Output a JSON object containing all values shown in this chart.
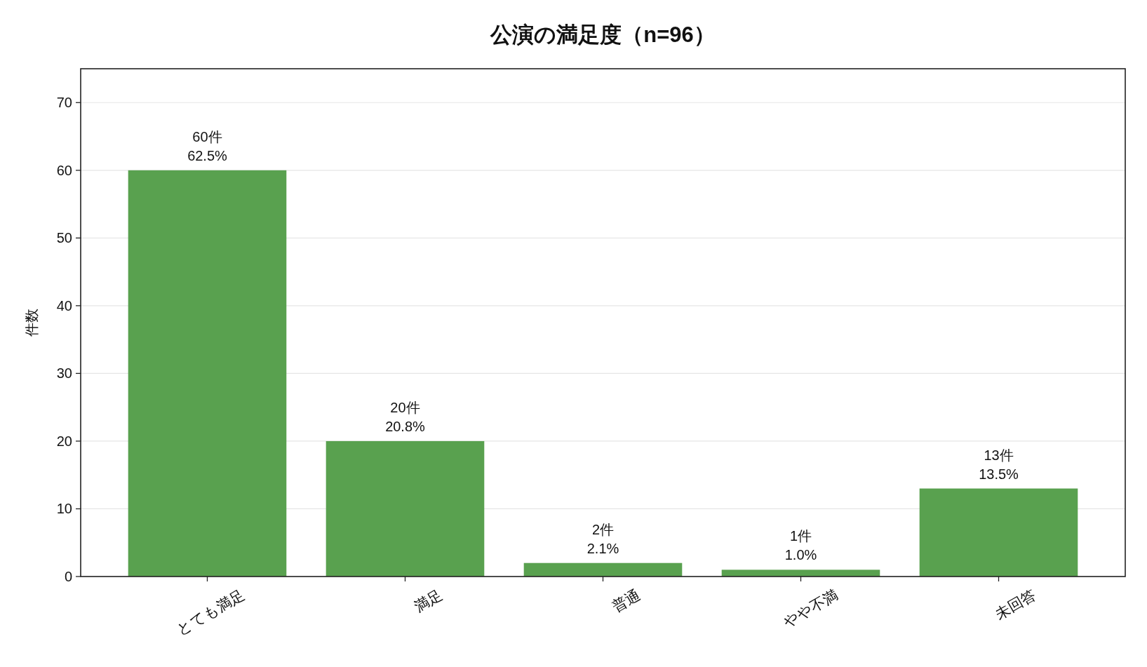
{
  "chart_data": {
    "type": "bar",
    "title": "公演の満足度（n=96）",
    "ylabel": "件数",
    "categories": [
      "とても満足",
      "満足",
      "普通",
      "やや不満",
      "未回答"
    ],
    "values": [
      60,
      20,
      2,
      1,
      13
    ],
    "value_labels": [
      "60件\n62.5%",
      "20件\n20.8%",
      "2件\n2.1%",
      "1件\n1.0%",
      "13件\n13.5%"
    ],
    "color": "#59a14f",
    "ylim": [
      0,
      75
    ],
    "yticks": [
      0,
      10,
      20,
      30,
      40,
      50,
      60,
      70
    ],
    "grid": "y"
  }
}
